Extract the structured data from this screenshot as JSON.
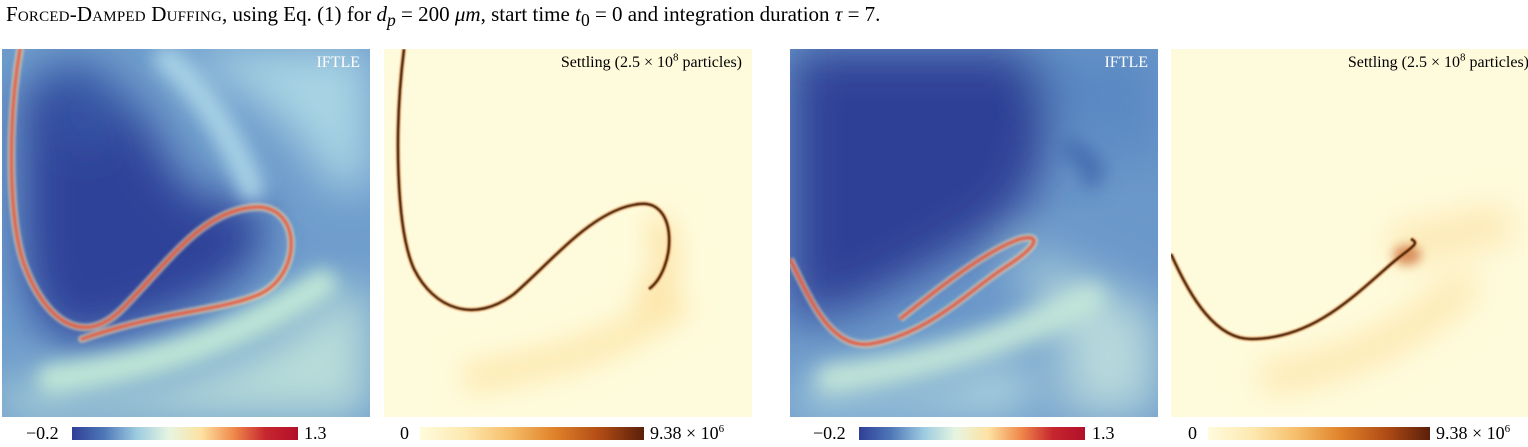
{
  "caption": {
    "prefix": "Forced-Damped Duffing",
    "text1": ", using Eq. (1) for ",
    "dp_var": "d",
    "dp_sub": "p",
    "dp_eq": " = 200 ",
    "dp_unit": "μm",
    "text2": ", start time ",
    "t_var": "t",
    "t_sub": "0",
    "t_eq": " = 0 and integration duration ",
    "tau_var": "τ",
    "tau_eq": " = 7."
  },
  "panels": [
    {
      "title": "IFTLE",
      "kind": "iftle"
    },
    {
      "title_main": "Settling (2.5 × 10",
      "title_exp": "8",
      "title_end": " particles)",
      "kind": "settling"
    },
    {
      "title": "IFTLE",
      "kind": "iftle"
    },
    {
      "title_main": "Settling (2.5 × 10",
      "title_exp": "8",
      "title_end": " particles)",
      "kind": "settling"
    }
  ],
  "colorbars": [
    {
      "min": "−0.2",
      "max": "1.3",
      "type": "diverging"
    },
    {
      "min": "0",
      "max_main": "9.38 × 10",
      "max_exp": "6",
      "type": "sequential"
    },
    {
      "min": "−0.2",
      "max": "1.3",
      "type": "diverging"
    },
    {
      "min": "0",
      "max_main": "9.38 × 10",
      "max_exp": "6",
      "type": "sequential"
    }
  ],
  "colors": {
    "iftle_low": "#2f3f96",
    "iftle_mid": "#e6f5e0",
    "iftle_high": "#b2102a",
    "settle_low": "#fefbdc",
    "settle_mid": "#e0822a",
    "settle_high": "#5a1f0a"
  }
}
